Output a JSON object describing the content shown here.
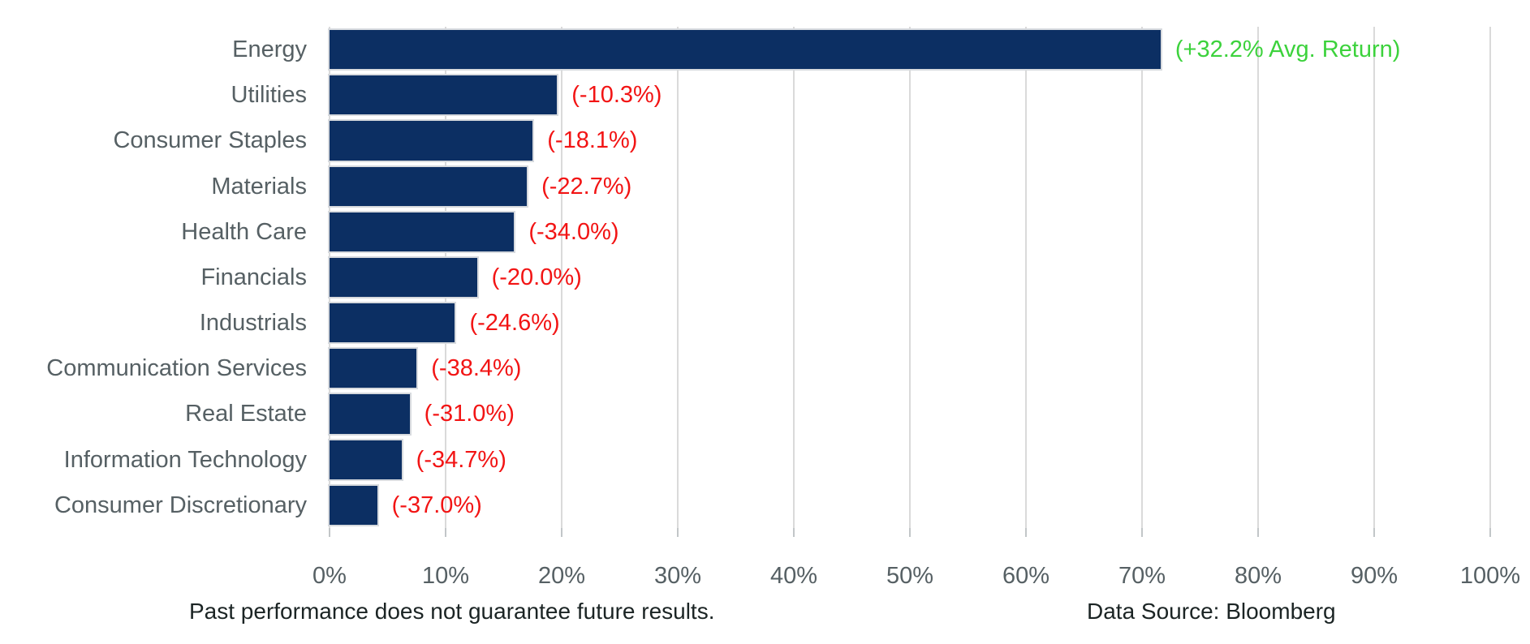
{
  "chart_data": {
    "type": "bar",
    "orientation": "horizontal",
    "title": "",
    "categories": [
      "Energy",
      "Utilities",
      "Consumer Staples",
      "Materials",
      "Health Care",
      "Financials",
      "Industrials",
      "Communication Services",
      "Real Estate",
      "Information Technology",
      "Consumer Discretionary"
    ],
    "values": [
      71.6,
      19.6,
      17.5,
      17.0,
      15.9,
      12.7,
      10.8,
      7.5,
      6.9,
      6.2,
      4.1
    ],
    "bar_labels": [
      "(+32.2% Avg. Return)",
      "(-10.3%)",
      "(-18.1%)",
      "(-22.7%)",
      "(-34.0%)",
      "(-20.0%)",
      "(-24.6%)",
      "(-38.4%)",
      "(-31.0%)",
      "(-34.7%)",
      "(-37.0%)"
    ],
    "bar_label_colors": [
      "#3cd23c",
      "#f21414",
      "#f21414",
      "#f21414",
      "#f21414",
      "#f21414",
      "#f21414",
      "#f21414",
      "#f21414",
      "#f21414",
      "#f21414"
    ],
    "xlim": [
      0,
      100
    ],
    "x_tick_values": [
      0,
      10,
      20,
      30,
      40,
      50,
      60,
      70,
      80,
      90,
      100
    ],
    "x_tick_labels": [
      "0%",
      "10%",
      "20%",
      "30%",
      "40%",
      "50%",
      "60%",
      "70%",
      "80%",
      "90%",
      "100%"
    ],
    "grid": true,
    "legend": "none"
  },
  "footer": {
    "disclaimer": "Past performance does not guarantee future results.",
    "source": "Data Source: Bloomberg"
  },
  "colors": {
    "background": "#ffffff",
    "bar_fill": "#0c2f63",
    "bar_border": "#d7dade",
    "gridline": "#dadada",
    "tick_stub": "#c2c6c8",
    "axis_text": "#566064",
    "category_text": "#566064",
    "footer_text": "#1b2424"
  }
}
